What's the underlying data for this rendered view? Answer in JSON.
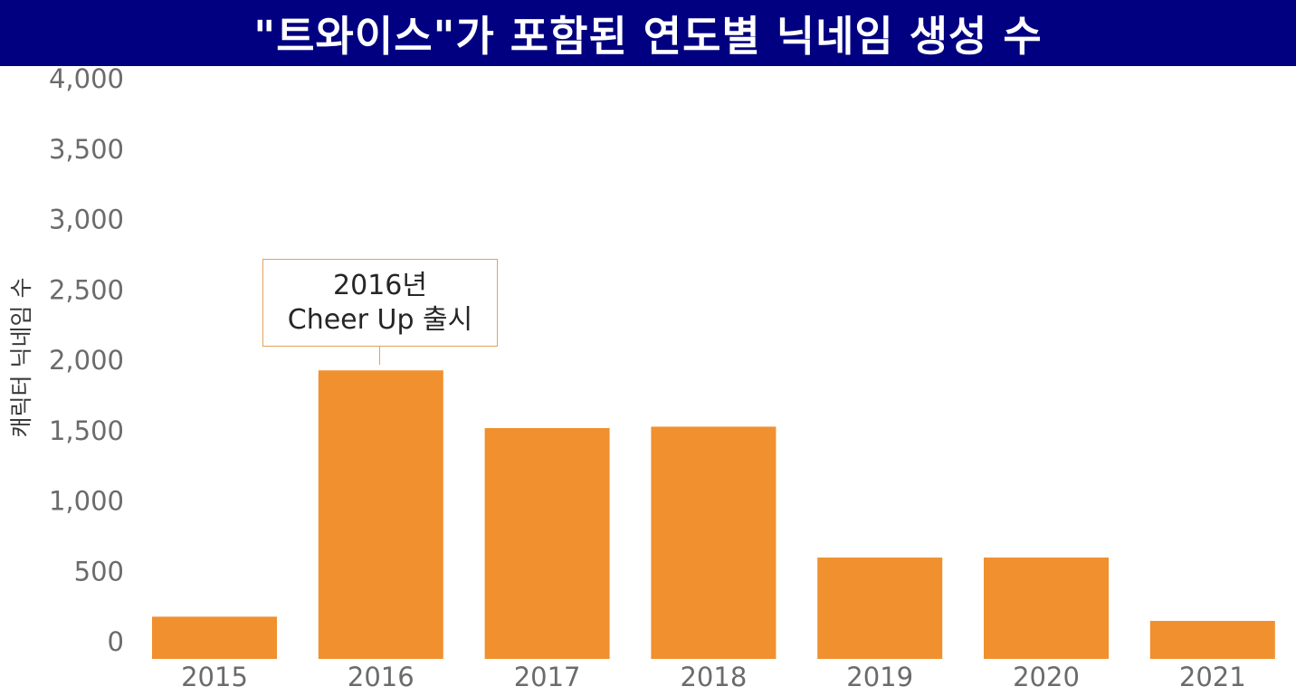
{
  "chart_data": {
    "type": "bar",
    "title": "\"트와이스\"가 포함된 연도별 닉네임 생성 수",
    "ylabel": "캐릭터 닉네임 수",
    "xlabel": "",
    "categories": [
      "2015",
      "2016",
      "2017",
      "2018",
      "2019",
      "2020",
      "2021"
    ],
    "values": [
      300,
      2050,
      1640,
      1650,
      720,
      720,
      270
    ],
    "ylim": [
      -150,
      4000
    ],
    "yticks": [
      "4,000",
      "3,500",
      "3,000",
      "2,500",
      "2,000",
      "1,500",
      "1,000",
      "500",
      "0"
    ],
    "ytick_values": [
      4000,
      3500,
      3000,
      2500,
      2000,
      1500,
      1000,
      500,
      0
    ],
    "grid": false,
    "bar_color": "#f0902f",
    "title_background": "#000080",
    "annotation": {
      "line1": "2016년",
      "line2": "Cheer Up 출시",
      "category": "2016"
    }
  }
}
